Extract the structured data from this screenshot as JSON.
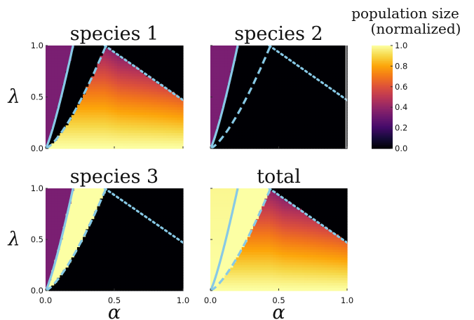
{
  "colorbar": {
    "title_line1": "population size",
    "title_line2": "(normalized)",
    "ticks": [
      "0.0",
      "0.2",
      "0.4",
      "0.6",
      "0.8",
      "1.0"
    ],
    "colormap": "inferno",
    "range": [
      0,
      1
    ]
  },
  "colors": {
    "boundary": "#87c9e6",
    "excluded_region": "#7a1f72",
    "zero": "#000004",
    "one": "#fcffa4"
  },
  "chart_data": [
    {
      "type": "heatmap",
      "title": "species 1",
      "xlabel": "",
      "ylabel": "λ",
      "xlim": [
        0,
        1
      ],
      "ylim": [
        0,
        1
      ],
      "xticks": [
        "0.0",
        "0.5",
        "1.0"
      ],
      "yticks": [
        "0.0",
        "0.5",
        "1.0"
      ],
      "show_xticklabels": false,
      "show_yticklabels": true,
      "show_xlabel": false,
      "show_ylabel": true
    },
    {
      "type": "heatmap",
      "title": "species 2",
      "xlabel": "",
      "ylabel": "",
      "xlim": [
        0,
        1
      ],
      "ylim": [
        0,
        1
      ],
      "xticks": [
        "0.0",
        "0.5",
        "1.0"
      ],
      "yticks": [
        "0.0",
        "0.5",
        "1.0"
      ],
      "show_xticklabels": false,
      "show_yticklabels": false,
      "show_xlabel": false,
      "show_ylabel": false
    },
    {
      "type": "heatmap",
      "title": "species 3",
      "xlabel": "α",
      "ylabel": "λ",
      "xlim": [
        0,
        1
      ],
      "ylim": [
        0,
        1
      ],
      "xticks": [
        "0.0",
        "0.5",
        "1.0"
      ],
      "yticks": [
        "0.0",
        "0.5",
        "1.0"
      ],
      "show_xticklabels": true,
      "show_yticklabels": true,
      "show_xlabel": true,
      "show_ylabel": true
    },
    {
      "type": "heatmap",
      "title": "total",
      "xlabel": "α",
      "ylabel": "",
      "xlim": [
        0,
        1
      ],
      "ylim": [
        0,
        1
      ],
      "xticks": [
        "0.0",
        "0.5",
        "1.0"
      ],
      "yticks": [
        "0.0",
        "0.5",
        "1.0"
      ],
      "show_xticklabels": true,
      "show_yticklabels": false,
      "show_xlabel": true,
      "show_ylabel": false
    }
  ]
}
